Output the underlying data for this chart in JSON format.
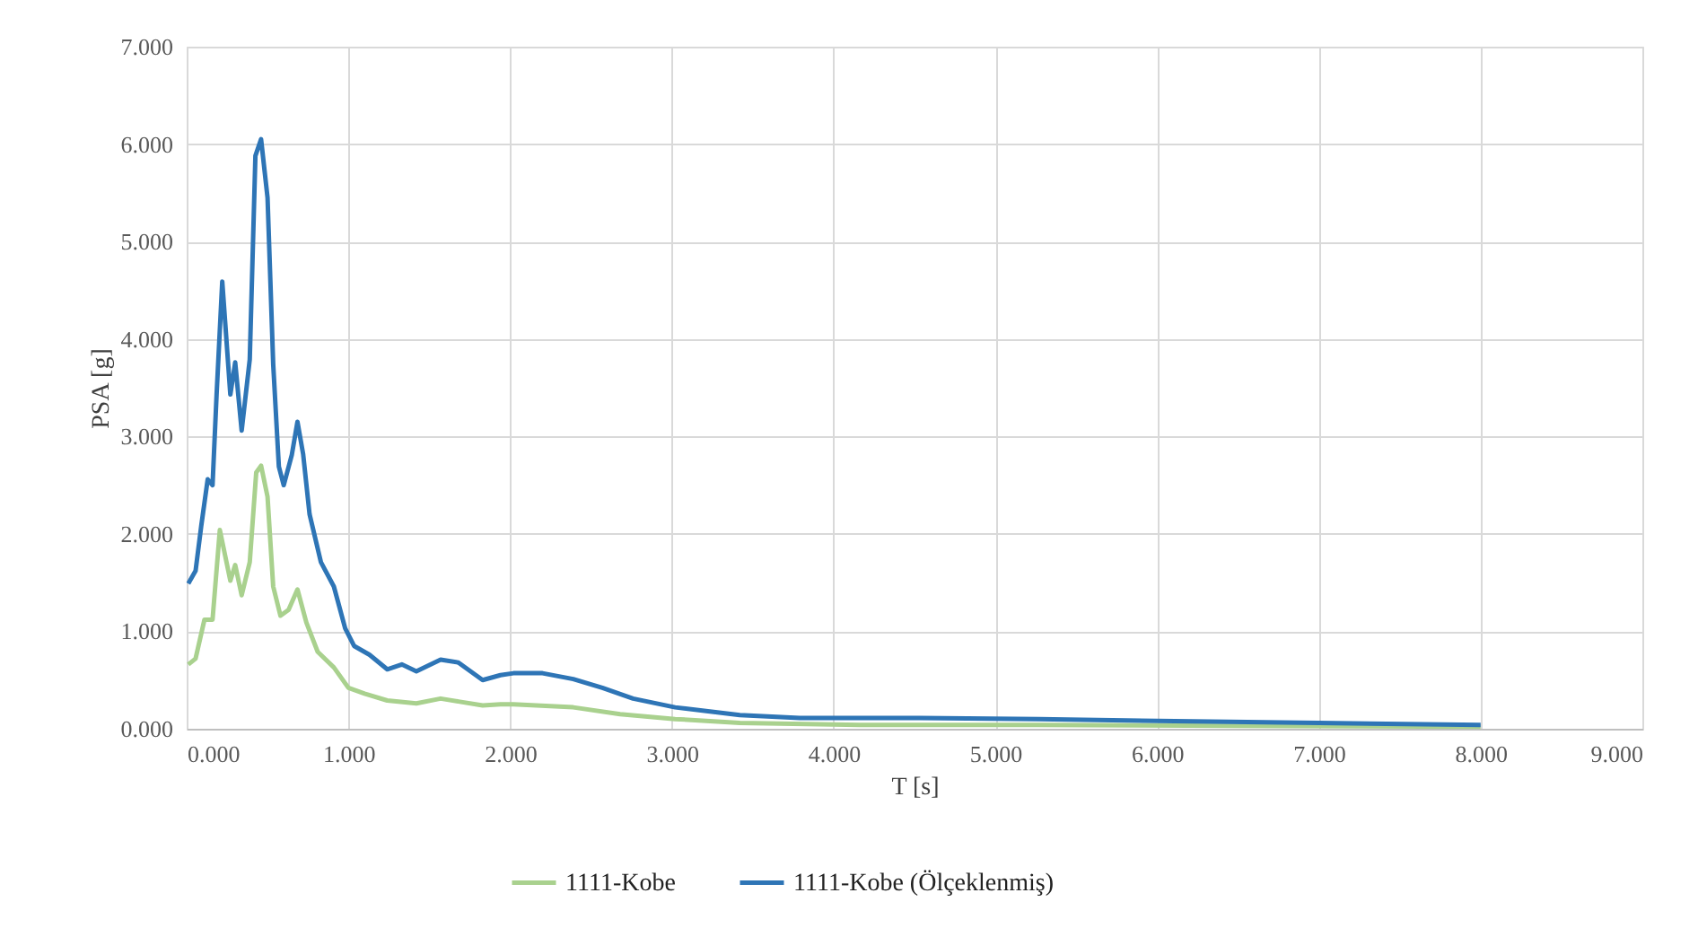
{
  "chart_data": {
    "type": "line",
    "xlabel": "T [s]",
    "ylabel": "PSA [g]",
    "xlim": [
      0,
      9
    ],
    "ylim": [
      0,
      7
    ],
    "xticks": [
      {
        "value": 0,
        "label": "0.000"
      },
      {
        "value": 1,
        "label": "1.000"
      },
      {
        "value": 2,
        "label": "2.000"
      },
      {
        "value": 3,
        "label": "3.000"
      },
      {
        "value": 4,
        "label": "4.000"
      },
      {
        "value": 5,
        "label": "5.000"
      },
      {
        "value": 6,
        "label": "6.000"
      },
      {
        "value": 7,
        "label": "7.000"
      },
      {
        "value": 8,
        "label": "8.000"
      },
      {
        "value": 9,
        "label": "9.000"
      }
    ],
    "yticks": [
      {
        "value": 0,
        "label": "0.000"
      },
      {
        "value": 1,
        "label": "1.000"
      },
      {
        "value": 2,
        "label": "2.000"
      },
      {
        "value": 3,
        "label": "3.000"
      },
      {
        "value": 4,
        "label": "4.000"
      },
      {
        "value": 5,
        "label": "5.000"
      },
      {
        "value": 6,
        "label": "6.000"
      },
      {
        "value": 7,
        "label": "7.000"
      }
    ],
    "grid": true,
    "legend": "bottom",
    "marker": "none",
    "line_style": "solid",
    "series": [
      {
        "name": "1111-Kobe",
        "color": "#a9d18e",
        "x": [
          0.01,
          0.055,
          0.11,
          0.16,
          0.205,
          0.27,
          0.3,
          0.34,
          0.39,
          0.43,
          0.46,
          0.5,
          0.535,
          0.58,
          0.63,
          0.685,
          0.74,
          0.81,
          0.91,
          1.0,
          1.1,
          1.24,
          1.42,
          1.57,
          1.68,
          1.83,
          1.94,
          2.02,
          2.39,
          2.68,
          3.02,
          3.42,
          4.16,
          5.27,
          6.5,
          8.0
        ],
        "values": [
          0.66,
          0.72,
          1.12,
          1.12,
          2.04,
          1.52,
          1.68,
          1.37,
          1.71,
          2.63,
          2.7,
          2.38,
          1.46,
          1.16,
          1.22,
          1.43,
          1.09,
          0.79,
          0.63,
          0.42,
          0.36,
          0.29,
          0.26,
          0.31,
          0.28,
          0.24,
          0.25,
          0.25,
          0.22,
          0.15,
          0.1,
          0.06,
          0.04,
          0.04,
          0.03,
          0.02
        ]
      },
      {
        "name": "1111-Kobe (Ölçeklenmiş)",
        "color": "#2e75b6",
        "x": [
          0.01,
          0.055,
          0.09,
          0.13,
          0.16,
          0.185,
          0.22,
          0.27,
          0.3,
          0.34,
          0.39,
          0.425,
          0.46,
          0.5,
          0.535,
          0.57,
          0.6,
          0.65,
          0.685,
          0.72,
          0.76,
          0.83,
          0.91,
          0.98,
          1.035,
          1.13,
          1.24,
          1.33,
          1.42,
          1.57,
          1.68,
          1.83,
          1.94,
          2.02,
          2.2,
          2.39,
          2.57,
          2.76,
          3.02,
          3.42,
          3.79,
          4.53,
          5.27,
          6.0,
          7.0,
          8.0
        ],
        "values": [
          1.49,
          1.62,
          2.08,
          2.56,
          2.5,
          3.43,
          4.59,
          3.43,
          3.76,
          3.06,
          3.79,
          5.88,
          6.05,
          5.45,
          3.74,
          2.69,
          2.5,
          2.81,
          3.15,
          2.82,
          2.2,
          1.71,
          1.46,
          1.03,
          0.85,
          0.76,
          0.61,
          0.66,
          0.59,
          0.71,
          0.68,
          0.5,
          0.55,
          0.57,
          0.57,
          0.51,
          0.42,
          0.31,
          0.22,
          0.14,
          0.11,
          0.11,
          0.1,
          0.08,
          0.06,
          0.04
        ]
      }
    ]
  }
}
